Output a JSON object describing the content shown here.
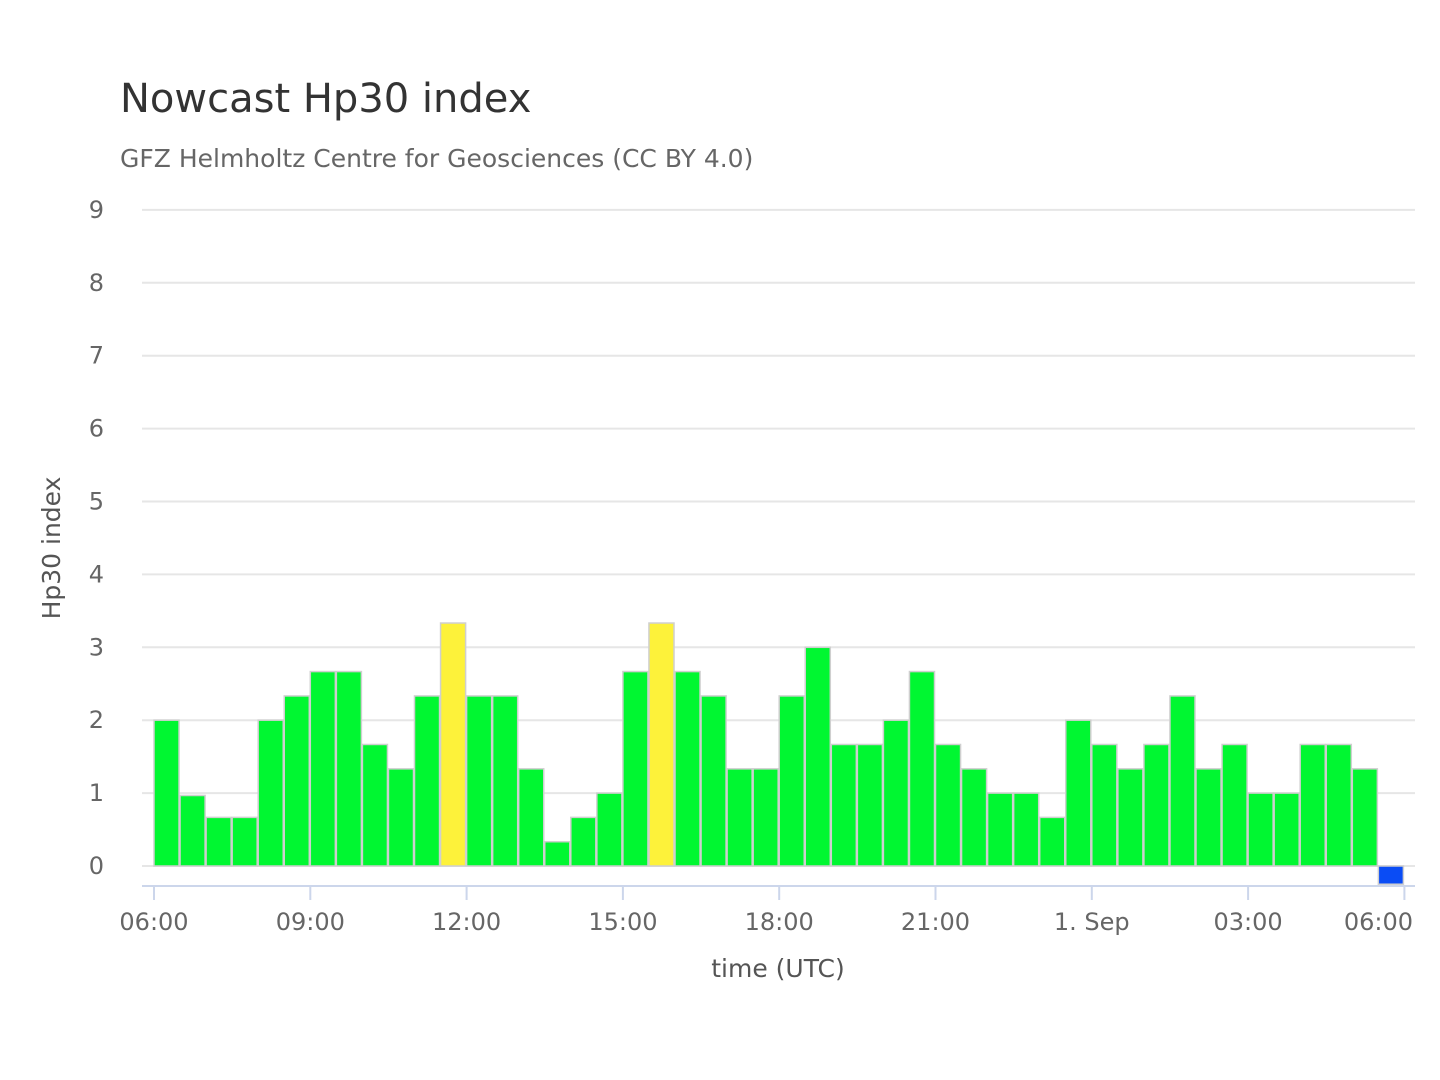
{
  "chart_data": {
    "type": "bar",
    "title": "Nowcast Hp30 index",
    "subtitle": "GFZ Helmholtz Centre for Geosciences (CC BY 4.0)",
    "xlabel": "time (UTC)",
    "ylabel": "Hp30 index",
    "ylim": [
      0,
      9
    ],
    "yticks": [
      "0",
      "1",
      "2",
      "3",
      "4",
      "5",
      "6",
      "7",
      "8",
      "9"
    ],
    "x_start": "2024-08-31 06:00 UTC",
    "x_interval_minutes": 30,
    "x_end": "2024-09-01 06:00 UTC",
    "xticks": [
      "06:00",
      "09:00",
      "12:00",
      "15:00",
      "18:00",
      "21:00",
      "1. Sep",
      "03:00",
      "06:00"
    ],
    "grid": true,
    "legend": "none",
    "values": [
      2.0,
      0.967,
      0.667,
      0.667,
      2.0,
      2.333,
      2.667,
      2.667,
      1.667,
      1.333,
      2.333,
      3.333,
      2.333,
      2.333,
      1.333,
      0.333,
      0.667,
      1.0,
      2.667,
      3.333,
      2.667,
      2.333,
      1.333,
      1.333,
      2.333,
      3.0,
      1.667,
      1.667,
      2.0,
      2.667,
      1.667,
      1.333,
      1.0,
      1.0,
      0.667,
      2.0,
      1.667,
      1.333,
      1.667,
      2.333,
      1.333,
      1.667,
      1.0,
      1.0,
      1.667,
      1.667,
      1.333,
      -0.25
    ],
    "colors": {
      "quiet": "#00f731",
      "active": "#fdf23a",
      "nowcast": "#0a4cf5",
      "grid": "#e6e6e6",
      "axis": "#ccd6eb",
      "bar_outline": "#cfcfcf"
    }
  }
}
